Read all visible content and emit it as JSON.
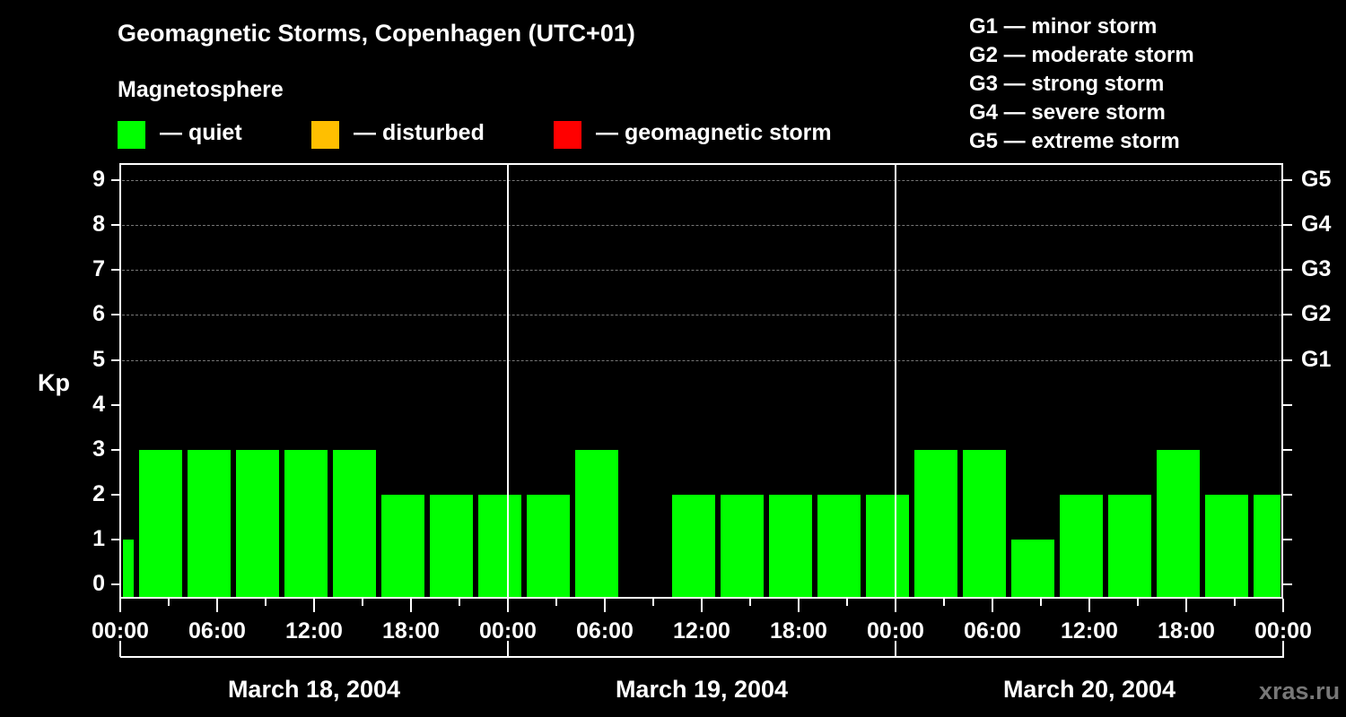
{
  "header": {
    "title": "Geomagnetic Storms, Copenhagen (UTC+01)",
    "subtitle": "Magnetosphere"
  },
  "legend": [
    {
      "label": "— quiet",
      "color": "#00ff00"
    },
    {
      "label": "— disturbed",
      "color": "#ffbf00"
    },
    {
      "label": "— geomagnetic storm",
      "color": "#ff0000"
    }
  ],
  "g_scale": [
    "G1 — minor storm",
    "G2 — moderate storm",
    "G3 — strong storm",
    "G4 — severe storm",
    "G5 — extreme storm"
  ],
  "watermark": "xras.ru",
  "chart_data": {
    "type": "bar",
    "title": "Geomagnetic Storms, Copenhagen (UTC+01)",
    "ylabel": "Kp",
    "ylim": [
      0,
      9
    ],
    "yticks": [
      0,
      1,
      2,
      3,
      4,
      5,
      6,
      7,
      8,
      9
    ],
    "right_axis_labels": {
      "5": "G1",
      "6": "G2",
      "7": "G3",
      "8": "G4",
      "9": "G5"
    },
    "grid": "dashed horizontal at Kp 5-9",
    "xtick_labels": [
      "00:00",
      "06:00",
      "12:00",
      "18:00",
      "00:00",
      "06:00",
      "12:00",
      "18:00",
      "00:00",
      "06:00",
      "12:00",
      "18:00",
      "00:00"
    ],
    "dates": [
      "March 18, 2004",
      "March 19, 2004",
      "March 20, 2004"
    ],
    "bars": [
      {
        "start_h": 0,
        "end_h": 1,
        "kp": 1,
        "status": "quiet"
      },
      {
        "start_h": 1,
        "end_h": 4,
        "kp": 3,
        "status": "quiet"
      },
      {
        "start_h": 4,
        "end_h": 7,
        "kp": 3,
        "status": "quiet"
      },
      {
        "start_h": 7,
        "end_h": 10,
        "kp": 3,
        "status": "quiet"
      },
      {
        "start_h": 10,
        "end_h": 13,
        "kp": 3,
        "status": "quiet"
      },
      {
        "start_h": 13,
        "end_h": 16,
        "kp": 3,
        "status": "quiet"
      },
      {
        "start_h": 16,
        "end_h": 19,
        "kp": 2,
        "status": "quiet"
      },
      {
        "start_h": 19,
        "end_h": 22,
        "kp": 2,
        "status": "quiet"
      },
      {
        "start_h": 22,
        "end_h": 25,
        "kp": 2,
        "status": "quiet"
      },
      {
        "start_h": 25,
        "end_h": 28,
        "kp": 2,
        "status": "quiet"
      },
      {
        "start_h": 28,
        "end_h": 31,
        "kp": 3,
        "status": "quiet"
      },
      {
        "start_h": 31,
        "end_h": 34,
        "kp": 0,
        "status": "quiet"
      },
      {
        "start_h": 34,
        "end_h": 37,
        "kp": 2,
        "status": "quiet"
      },
      {
        "start_h": 37,
        "end_h": 40,
        "kp": 2,
        "status": "quiet"
      },
      {
        "start_h": 40,
        "end_h": 43,
        "kp": 2,
        "status": "quiet"
      },
      {
        "start_h": 43,
        "end_h": 46,
        "kp": 2,
        "status": "quiet"
      },
      {
        "start_h": 46,
        "end_h": 49,
        "kp": 2,
        "status": "quiet"
      },
      {
        "start_h": 49,
        "end_h": 52,
        "kp": 3,
        "status": "quiet"
      },
      {
        "start_h": 52,
        "end_h": 55,
        "kp": 3,
        "status": "quiet"
      },
      {
        "start_h": 55,
        "end_h": 58,
        "kp": 1,
        "status": "quiet"
      },
      {
        "start_h": 58,
        "end_h": 61,
        "kp": 2,
        "status": "quiet"
      },
      {
        "start_h": 61,
        "end_h": 64,
        "kp": 2,
        "status": "quiet"
      },
      {
        "start_h": 64,
        "end_h": 67,
        "kp": 3,
        "status": "quiet"
      },
      {
        "start_h": 67,
        "end_h": 70,
        "kp": 2,
        "status": "quiet"
      },
      {
        "start_h": 70,
        "end_h": 72,
        "kp": 2,
        "status": "quiet"
      }
    ]
  }
}
